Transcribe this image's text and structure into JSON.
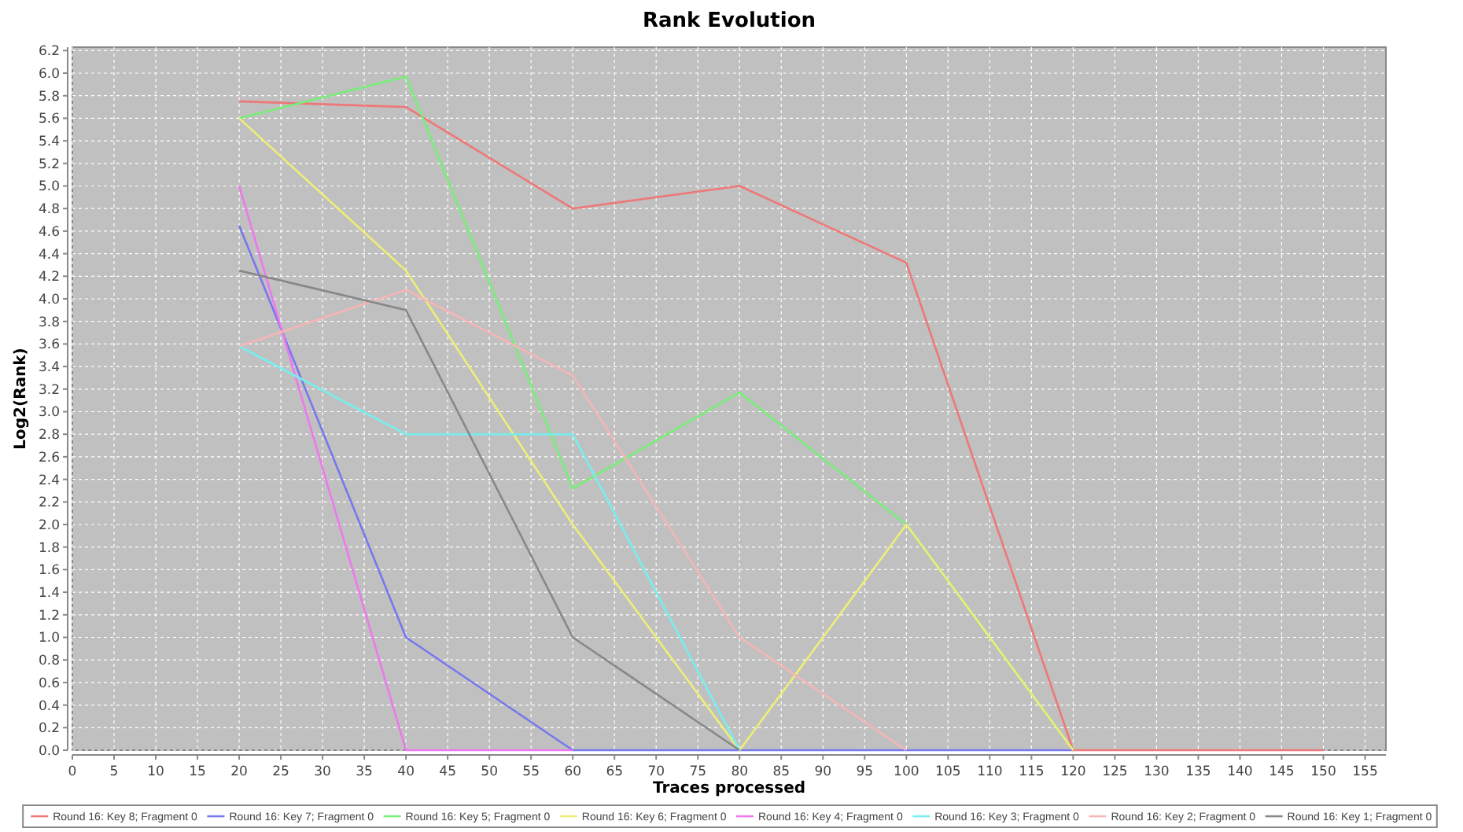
{
  "chart_data": {
    "type": "line",
    "title": "Rank Evolution",
    "xlabel": "Traces processed",
    "ylabel": "Log2(Rank)",
    "x": [
      20,
      40,
      60,
      80,
      100,
      120,
      150
    ],
    "series": [
      {
        "name": "Round 16: Key 8; Fragment 0",
        "color": "#ee7777",
        "values": [
          5.75,
          5.7,
          4.8,
          5.0,
          4.32,
          0,
          0
        ]
      },
      {
        "name": "Round 16: Key 7; Fragment 0",
        "color": "#7777ee",
        "values": [
          4.65,
          1.0,
          0,
          0,
          0,
          0,
          null
        ]
      },
      {
        "name": "Round 16: Key 5; Fragment 0",
        "color": "#77ee77",
        "values": [
          5.6,
          5.97,
          2.32,
          3.17,
          2.0,
          0,
          null
        ]
      },
      {
        "name": "Round 16: Key 6; Fragment 0",
        "color": "#eeee77",
        "values": [
          5.6,
          4.25,
          2.0,
          0,
          2.0,
          0,
          null
        ]
      },
      {
        "name": "Round 16: Key 4; Fragment 0",
        "color": "#ee77ee",
        "values": [
          5.0,
          0,
          0,
          null,
          null,
          null,
          null
        ]
      },
      {
        "name": "Round 16: Key 3; Fragment 0",
        "color": "#77eeee",
        "values": [
          3.58,
          2.8,
          2.8,
          0,
          null,
          null,
          null
        ]
      },
      {
        "name": "Round 16: Key 2; Fragment 0",
        "color": "#f5b5b5",
        "values": [
          3.58,
          4.08,
          3.32,
          1.0,
          0,
          null,
          null
        ]
      },
      {
        "name": "Round 16: Key 1; Fragment 0",
        "color": "#888888",
        "values": [
          4.25,
          3.9,
          1.0,
          0,
          null,
          null,
          null
        ]
      }
    ],
    "xlim": [
      0,
      157.5
    ],
    "xticks": [
      0,
      5,
      10,
      15,
      20,
      25,
      30,
      35,
      40,
      45,
      50,
      55,
      60,
      65,
      70,
      75,
      80,
      85,
      90,
      95,
      100,
      105,
      110,
      115,
      120,
      125,
      130,
      135,
      140,
      145,
      150,
      155
    ],
    "ylim": [
      0,
      6.23
    ],
    "yticks": [
      {
        "value": 0,
        "label": "0.0"
      },
      {
        "value": 0.2,
        "label": "0.2"
      },
      {
        "value": 0.4,
        "label": "0.4"
      },
      {
        "value": 0.6,
        "label": "0.6"
      },
      {
        "value": 0.8,
        "label": "0.8"
      },
      {
        "value": 1,
        "label": "1.0"
      },
      {
        "value": 1.2,
        "label": "1.2"
      },
      {
        "value": 1.4,
        "label": "1.4"
      },
      {
        "value": 1.6,
        "label": "1.6"
      },
      {
        "value": 1.8,
        "label": "1.8"
      },
      {
        "value": 2,
        "label": "2.0"
      },
      {
        "value": 2.2,
        "label": "2.2"
      },
      {
        "value": 2.4,
        "label": "2.4"
      },
      {
        "value": 2.6,
        "label": "2.6"
      },
      {
        "value": 2.8,
        "label": "2.8"
      },
      {
        "value": 3,
        "label": "3.0"
      },
      {
        "value": 3.2,
        "label": "3.2"
      },
      {
        "value": 3.4,
        "label": "3.4"
      },
      {
        "value": 3.6,
        "label": "3.6"
      },
      {
        "value": 3.8,
        "label": "3.8"
      },
      {
        "value": 4,
        "label": "4.0"
      },
      {
        "value": 4.2,
        "label": "4.2"
      },
      {
        "value": 4.4,
        "label": "4.4"
      },
      {
        "value": 4.6,
        "label": "4.6"
      },
      {
        "value": 4.8,
        "label": "4.8"
      },
      {
        "value": 5,
        "label": "5.0"
      },
      {
        "value": 5.2,
        "label": "5.2"
      },
      {
        "value": 5.4,
        "label": "5.4"
      },
      {
        "value": 5.6,
        "label": "5.6"
      },
      {
        "value": 5.8,
        "label": "5.8"
      },
      {
        "value": 6,
        "label": "6.0"
      },
      {
        "value": 6.2,
        "label": "6.2"
      }
    ],
    "grid": true,
    "legend": "bottom"
  }
}
